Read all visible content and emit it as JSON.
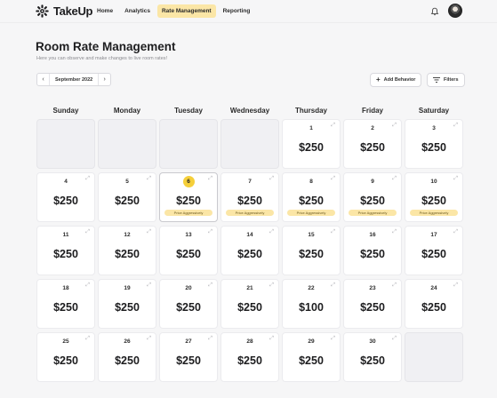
{
  "brand": {
    "name": "TakeUp"
  },
  "nav": [
    {
      "label": "Home",
      "active": false
    },
    {
      "label": "Analytics",
      "active": false
    },
    {
      "label": "Rate Management",
      "active": true
    },
    {
      "label": "Reporting",
      "active": false
    }
  ],
  "header": {
    "title": "Room Rate Management",
    "subtitle": "Here you can observe and make changes to live room rates!"
  },
  "month_picker": {
    "prev": "‹",
    "label": "September 2022",
    "next": "›"
  },
  "actions": {
    "add_behavior": "Add Behavior",
    "filters": "Filters"
  },
  "weekdays": [
    "Sunday",
    "Monday",
    "Tuesday",
    "Wednesday",
    "Thursday",
    "Friday",
    "Saturday"
  ],
  "calendar": {
    "today": "6",
    "weeks": [
      [
        null,
        null,
        null,
        null,
        {
          "date": "1",
          "price": "$250"
        },
        {
          "date": "2",
          "price": "$250"
        },
        {
          "date": "3",
          "price": "$250"
        }
      ],
      [
        {
          "date": "4",
          "price": "$250"
        },
        {
          "date": "5",
          "price": "$250"
        },
        {
          "date": "6",
          "price": "$250",
          "tag": "Price Aggressively"
        },
        {
          "date": "7",
          "price": "$250",
          "tag": "Price Aggressively"
        },
        {
          "date": "8",
          "price": "$250",
          "tag": "Price Aggressively"
        },
        {
          "date": "9",
          "price": "$250",
          "tag": "Price Aggressively"
        },
        {
          "date": "10",
          "price": "$250",
          "tag": "Price Aggressively"
        }
      ],
      [
        {
          "date": "11",
          "price": "$250"
        },
        {
          "date": "12",
          "price": "$250"
        },
        {
          "date": "13",
          "price": "$250"
        },
        {
          "date": "14",
          "price": "$250"
        },
        {
          "date": "15",
          "price": "$250"
        },
        {
          "date": "16",
          "price": "$250"
        },
        {
          "date": "17",
          "price": "$250"
        }
      ],
      [
        {
          "date": "18",
          "price": "$250"
        },
        {
          "date": "19",
          "price": "$250"
        },
        {
          "date": "20",
          "price": "$250"
        },
        {
          "date": "21",
          "price": "$250"
        },
        {
          "date": "22",
          "price": "$100"
        },
        {
          "date": "23",
          "price": "$250"
        },
        {
          "date": "24",
          "price": "$250"
        }
      ],
      [
        {
          "date": "25",
          "price": "$250"
        },
        {
          "date": "26",
          "price": "$250"
        },
        {
          "date": "27",
          "price": "$250"
        },
        {
          "date": "28",
          "price": "$250"
        },
        {
          "date": "29",
          "price": "$250"
        },
        {
          "date": "30",
          "price": "$250"
        },
        null
      ]
    ]
  },
  "colors": {
    "accent": "#fbe6a6",
    "today_badge": "#f5cf3a",
    "background": "#f6f6f7"
  },
  "icons": {
    "logo": "gear-logo-icon",
    "expand": "expand-icon",
    "bell": "bell-icon",
    "add": "plus-icon",
    "filter": "filter-icon"
  }
}
